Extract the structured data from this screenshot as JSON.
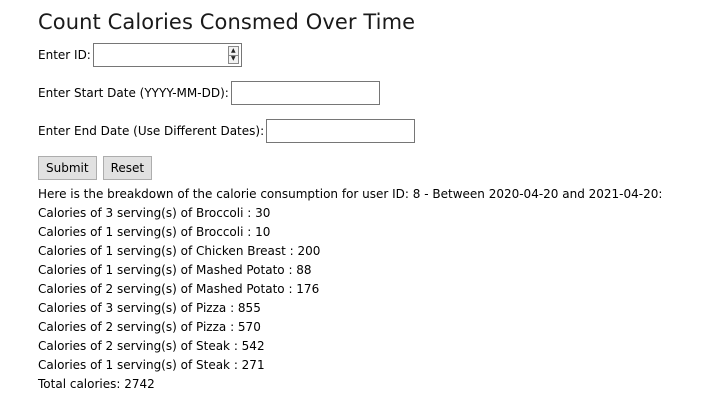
{
  "page": {
    "title": "Count Calories Consmed Over Time"
  },
  "form": {
    "id_label": "Enter ID:",
    "id_value": "",
    "start_label": "Enter Start Date (YYYY-MM-DD):",
    "start_value": "",
    "end_label": "Enter End Date (Use Different Dates):",
    "end_value": "",
    "submit_label": "Submit",
    "reset_label": "Reset"
  },
  "results": {
    "summary": "Here is the breakdown of the calorie consumption for user ID: 8 - Between 2020-04-20 and 2021-04-20:",
    "lines": [
      "Calories of 3 serving(s) of Broccoli : 30",
      "Calories of 1 serving(s) of Broccoli : 10",
      "Calories of 1 serving(s) of Chicken Breast : 200",
      "Calories of 1 serving(s) of Mashed Potato : 88",
      "Calories of 2 serving(s) of Mashed Potato : 176",
      "Calories of 3 serving(s) of Pizza : 855",
      "Calories of 2 serving(s) of Pizza : 570",
      "Calories of 2 serving(s) of Steak : 542",
      "Calories of 1 serving(s) of Steak : 271"
    ],
    "total": "Total calories: 2742"
  }
}
